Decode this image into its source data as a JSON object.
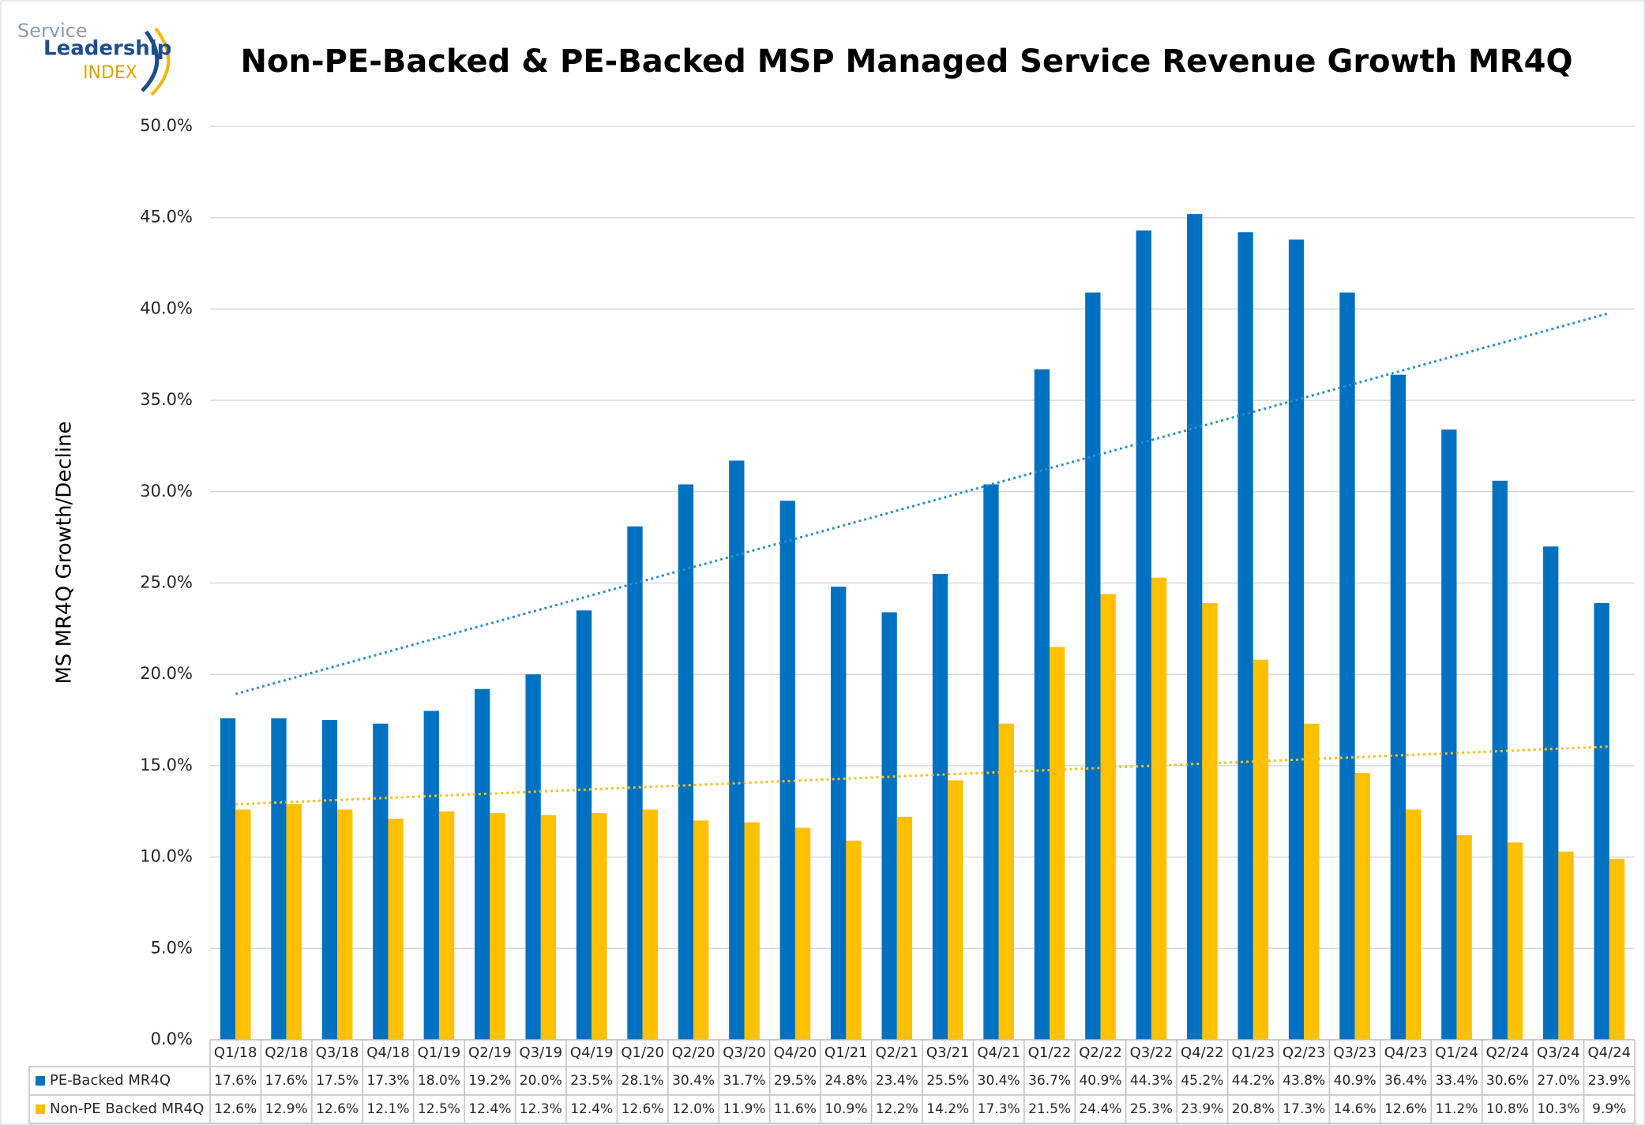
{
  "logo": {
    "line1": "Service",
    "line2": "Leadership",
    "line3": "INDEX"
  },
  "chart_data": {
    "type": "bar",
    "title": "Non-PE-Backed & PE-Backed MSP Managed Service Revenue Growth MR4Q",
    "y_label": "MS MR4Q Growth/Decline",
    "categories": [
      "Q1/18",
      "Q2/18",
      "Q3/18",
      "Q4/18",
      "Q1/19",
      "Q2/19",
      "Q3/19",
      "Q4/19",
      "Q1/20",
      "Q2/20",
      "Q3/20",
      "Q4/20",
      "Q1/21",
      "Q2/21",
      "Q3/21",
      "Q4/21",
      "Q1/22",
      "Q2/22",
      "Q3/22",
      "Q4/22",
      "Q1/23",
      "Q2/23",
      "Q3/23",
      "Q4/23",
      "Q1/24",
      "Q2/24",
      "Q3/24",
      "Q4/24"
    ],
    "series": [
      {
        "name": "PE-Backed MR4Q",
        "color": "#0070c0",
        "trendline_color": "#2e8fc7",
        "values": [
          17.6,
          17.6,
          17.5,
          17.3,
          18.0,
          19.2,
          20.0,
          23.5,
          28.1,
          30.4,
          31.7,
          29.5,
          24.8,
          23.4,
          25.5,
          30.4,
          36.7,
          40.9,
          44.3,
          45.2,
          44.2,
          43.8,
          40.9,
          36.4,
          33.4,
          30.6,
          27.0,
          23.9
        ],
        "value_labels": [
          "17.6%",
          "17.6%",
          "17.5%",
          "17.3%",
          "18.0%",
          "19.2%",
          "20.0%",
          "23.5%",
          "28.1%",
          "30.4%",
          "31.7%",
          "29.5%",
          "24.8%",
          "23.4%",
          "25.5%",
          "30.4%",
          "36.7%",
          "40.9%",
          "44.3%",
          "45.2%",
          "44.2%",
          "43.8%",
          "40.9%",
          "36.4%",
          "33.4%",
          "30.6%",
          "27.0%",
          "23.9%"
        ]
      },
      {
        "name": "Non-PE Backed MR4Q",
        "color": "#ffc000",
        "trendline_color": "#f0c020",
        "values": [
          12.6,
          12.9,
          12.6,
          12.1,
          12.5,
          12.4,
          12.3,
          12.4,
          12.6,
          12.0,
          11.9,
          11.6,
          10.9,
          12.2,
          14.2,
          17.3,
          21.5,
          24.4,
          25.3,
          23.9,
          20.8,
          17.3,
          14.6,
          12.6,
          11.2,
          10.8,
          10.3,
          9.9
        ],
        "value_labels": [
          "12.6%",
          "12.9%",
          "12.6%",
          "12.1%",
          "12.5%",
          "12.4%",
          "12.3%",
          "12.4%",
          "12.6%",
          "12.0%",
          "11.9%",
          "11.6%",
          "10.9%",
          "12.2%",
          "14.2%",
          "17.3%",
          "21.5%",
          "24.4%",
          "25.3%",
          "23.9%",
          "20.8%",
          "17.3%",
          "14.6%",
          "12.6%",
          "11.2%",
          "10.8%",
          "10.3%",
          "9.9%"
        ]
      }
    ],
    "ylim": [
      0,
      50
    ],
    "yticks": [
      {
        "value": 0,
        "label": "0.0%"
      },
      {
        "value": 5,
        "label": "5.0%"
      },
      {
        "value": 10,
        "label": "10.0%"
      },
      {
        "value": 15,
        "label": "15.0%"
      },
      {
        "value": 20,
        "label": "20.0%"
      },
      {
        "value": 25,
        "label": "25.0%"
      },
      {
        "value": 30,
        "label": "30.0%"
      },
      {
        "value": 35,
        "label": "35.0%"
      },
      {
        "value": 40,
        "label": "40.0%"
      },
      {
        "value": 45,
        "label": "45.0%"
      },
      {
        "value": 50,
        "label": "50.0%"
      }
    ],
    "grid": true,
    "trendline": "linear",
    "data_table": true
  }
}
